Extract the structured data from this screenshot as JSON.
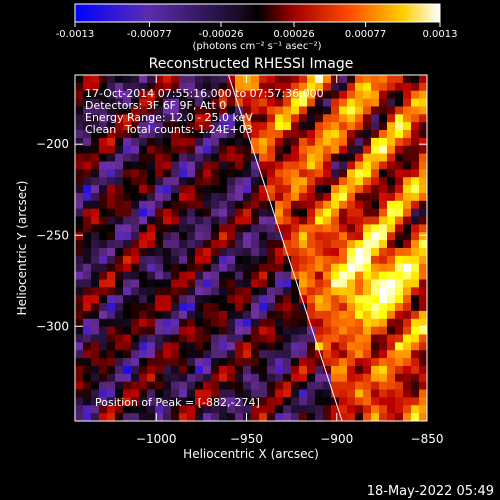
{
  "colorbar": {
    "ticks": [
      "-0.0013",
      "-0.00077",
      "-0.00026",
      "0.00026",
      "0.00077",
      "0.0013"
    ],
    "tick_values": [
      -0.0013,
      -0.00077,
      -0.00026,
      0.00026,
      0.00077,
      0.0013
    ],
    "range": [
      -0.0013,
      0.0013
    ],
    "units": "(photons cm⁻² s⁻¹ asec⁻²)"
  },
  "chart_data": {
    "type": "heatmap",
    "title": "Reconstructed RHESSI Image",
    "xlabel": "Heliocentric X (arcsec)",
    "ylabel": "Heliocentric Y (arcsec)",
    "xlim": [
      -1045,
      -850
    ],
    "ylim": [
      -352,
      -162
    ],
    "x_ticks": [
      -1000,
      -950,
      -900,
      -850
    ],
    "x_tick_labels": [
      "−1000",
      "−950",
      "−900",
      "−850"
    ],
    "y_ticks": [
      -200,
      -250,
      -300
    ],
    "y_tick_labels": [
      "−200",
      "−250",
      "−300"
    ],
    "colormap": [
      "#0000ff",
      "#7030a0",
      "#000000",
      "#c00000",
      "#ff7000",
      "#ffff00",
      "#ffffff"
    ],
    "peak": {
      "x": -882,
      "y": -274
    },
    "limb_line": {
      "x": [
        -960,
        -897
      ],
      "y": [
        -162,
        -352
      ]
    }
  },
  "info": {
    "time_range": "17-Oct-2014 07:55:16.000 to 07:57:36.000",
    "detectors": "Detectors: 3F 6F 9F, Att 0",
    "energy_range": "Energy Range: 12.0 - 25.0 keV",
    "clean": "Clean",
    "total_counts": "Total counts: 1.24E+03",
    "peak_position": "Position of Peak = [-882,-274]"
  },
  "footer": {
    "timestamp": "18-May-2022 05:49"
  }
}
